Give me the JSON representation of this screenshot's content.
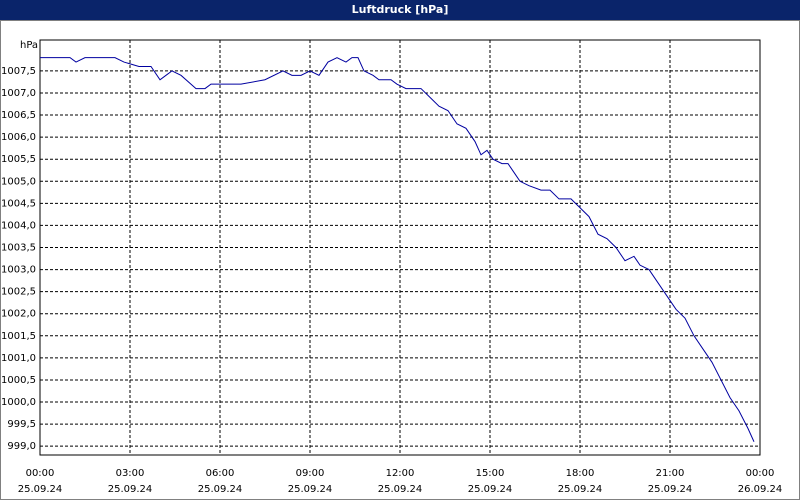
{
  "chart_data": {
    "type": "line",
    "title": "Luftdruck [hPa]",
    "y_unit": "hPa",
    "x": [
      0,
      0.5,
      1.0,
      1.2,
      1.5,
      2.0,
      2.5,
      2.8,
      3.3,
      3.7,
      4.0,
      4.2,
      4.4,
      4.7,
      5.2,
      5.5,
      5.7,
      6.7,
      7.5,
      8.1,
      8.4,
      8.7,
      9.0,
      9.3,
      9.6,
      9.9,
      10.2,
      10.4,
      10.6,
      10.8,
      11.1,
      11.3,
      11.7,
      11.9,
      12.2,
      12.7,
      13.0,
      13.3,
      13.6,
      13.9,
      14.2,
      14.5,
      14.7,
      14.9,
      15.1,
      15.4,
      15.6,
      15.8,
      16.0,
      16.3,
      16.7,
      17.0,
      17.3,
      17.7,
      18.0,
      18.3,
      18.6,
      18.9,
      19.2,
      19.5,
      19.8,
      20.0,
      20.3,
      20.6,
      20.9,
      21.2,
      21.5,
      21.8,
      22.1,
      22.4,
      22.7,
      23.0,
      23.3,
      23.6,
      23.8
    ],
    "series": [
      {
        "name": "Luftdruck",
        "color": "#0000a0",
        "values": [
          1007.8,
          1007.8,
          1007.8,
          1007.7,
          1007.8,
          1007.8,
          1007.8,
          1007.7,
          1007.6,
          1007.6,
          1007.3,
          1007.4,
          1007.5,
          1007.4,
          1007.1,
          1007.1,
          1007.2,
          1007.2,
          1007.3,
          1007.5,
          1007.4,
          1007.4,
          1007.5,
          1007.4,
          1007.7,
          1007.8,
          1007.7,
          1007.8,
          1007.8,
          1007.5,
          1007.4,
          1007.3,
          1007.3,
          1007.2,
          1007.1,
          1007.1,
          1006.9,
          1006.7,
          1006.6,
          1006.3,
          1006.2,
          1005.9,
          1005.6,
          1005.7,
          1005.5,
          1005.4,
          1005.4,
          1005.2,
          1005.0,
          1004.9,
          1004.8,
          1004.8,
          1004.6,
          1004.6,
          1004.4,
          1004.2,
          1003.8,
          1003.7,
          1003.5,
          1003.2,
          1003.3,
          1003.1,
          1003.0,
          1002.7,
          1002.4,
          1002.1,
          1001.9,
          1001.5,
          1001.2,
          1000.9,
          1000.5,
          1000.1,
          999.8,
          999.4,
          999.1
        ]
      }
    ],
    "xlim": [
      0,
      24
    ],
    "xticks": [
      {
        "value": 0,
        "label": "00:00"
      },
      {
        "value": 3,
        "label": "03:00"
      },
      {
        "value": 6,
        "label": "06:00"
      },
      {
        "value": 9,
        "label": "09:00"
      },
      {
        "value": 12,
        "label": "12:00"
      },
      {
        "value": 15,
        "label": "15:00"
      },
      {
        "value": 18,
        "label": "18:00"
      },
      {
        "value": 21,
        "label": "21:00"
      },
      {
        "value": 24,
        "label": "00:00"
      }
    ],
    "xtick_dates": [
      "25.09.24",
      "25.09.24",
      "25.09.24",
      "25.09.24",
      "25.09.24",
      "25.09.24",
      "25.09.24",
      "25.09.24",
      "26.09.24"
    ],
    "ylim": [
      998.8,
      1008.2
    ],
    "yticks": [
      {
        "value": 999.0,
        "label": "999,0"
      },
      {
        "value": 999.5,
        "label": "999,5"
      },
      {
        "value": 1000.0,
        "label": "1000,0"
      },
      {
        "value": 1000.5,
        "label": "1000,5"
      },
      {
        "value": 1001.0,
        "label": "1001,0"
      },
      {
        "value": 1001.5,
        "label": "1001,5"
      },
      {
        "value": 1002.0,
        "label": "1002,0"
      },
      {
        "value": 1002.5,
        "label": "1002,5"
      },
      {
        "value": 1003.0,
        "label": "1003,0"
      },
      {
        "value": 1003.5,
        "label": "1003,5"
      },
      {
        "value": 1004.0,
        "label": "1004,0"
      },
      {
        "value": 1004.5,
        "label": "1004,5"
      },
      {
        "value": 1005.0,
        "label": "1005,0"
      },
      {
        "value": 1005.5,
        "label": "1005,5"
      },
      {
        "value": 1006.0,
        "label": "1006,0"
      },
      {
        "value": 1006.5,
        "label": "1006,5"
      },
      {
        "value": 1007.0,
        "label": "1007,0"
      },
      {
        "value": 1007.5,
        "label": "1007,5"
      }
    ],
    "grid": true
  }
}
